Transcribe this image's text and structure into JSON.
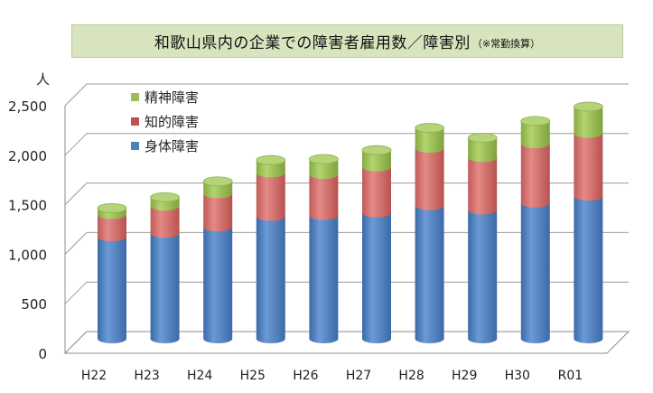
{
  "title": {
    "main": "和歌山県内の企業での障害者雇用数／障害別",
    "note": "（※常勤換算）"
  },
  "chart_data": {
    "type": "bar",
    "subtype": "stacked-3d-cylinder",
    "title": "和歌山県内の企業での障害者雇用数／障害別（※常勤換算）",
    "ylabel": "人",
    "ylim": [
      0,
      2500
    ],
    "yticks": [
      0,
      500,
      1000,
      1500,
      2000,
      2500
    ],
    "ytick_labels": [
      "0",
      "500",
      "1,000",
      "1,500",
      "2,000",
      "2,500"
    ],
    "grid": true,
    "legend_position": "top-left",
    "categories": [
      "H22",
      "H23",
      "H24",
      "H25",
      "H26",
      "H27",
      "H28",
      "H29",
      "H30",
      "R01"
    ],
    "series": [
      {
        "name": "身体障害",
        "color": "#4f81bd",
        "values": [
          1030,
          1065,
          1130,
          1235,
          1245,
          1270,
          1345,
          1300,
          1370,
          1440
        ]
      },
      {
        "name": "知的障害",
        "color": "#c0504d",
        "values": [
          225,
          275,
          335,
          440,
          415,
          465,
          580,
          530,
          600,
          635
        ]
      },
      {
        "name": "精神障害",
        "color": "#9bbb59",
        "values": [
          65,
          90,
          125,
          130,
          155,
          170,
          205,
          200,
          230,
          270
        ]
      }
    ]
  }
}
